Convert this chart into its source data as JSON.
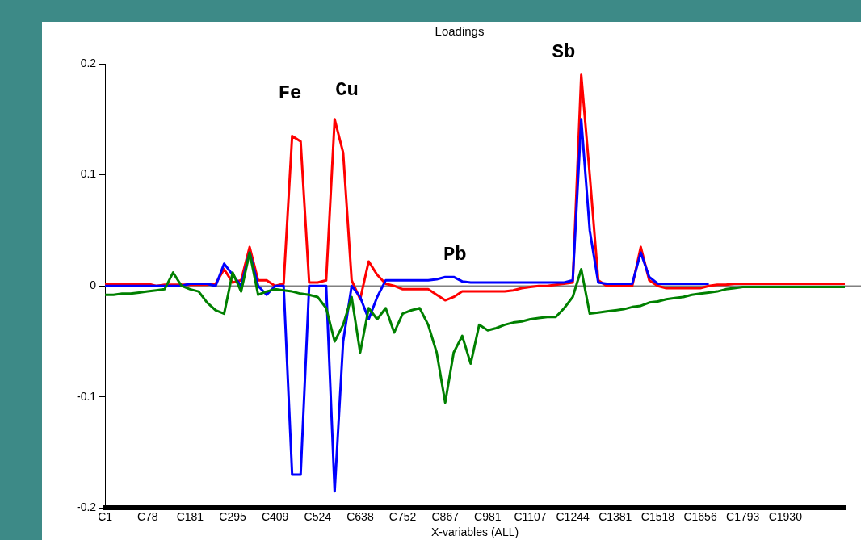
{
  "chart_data": {
    "type": "line",
    "title": "Loadings",
    "xlabel": "X-variables (ALL)",
    "categories": [
      "C1",
      null,
      null,
      null,
      null,
      "C78",
      null,
      null,
      null,
      null,
      "C181",
      null,
      null,
      null,
      null,
      "C295",
      null,
      null,
      null,
      null,
      "C409",
      null,
      null,
      null,
      null,
      "C524",
      null,
      null,
      null,
      null,
      "C638",
      null,
      null,
      null,
      null,
      "C752",
      null,
      null,
      null,
      null,
      "C867",
      null,
      null,
      null,
      null,
      "C981",
      null,
      null,
      null,
      null,
      "C1107",
      null,
      null,
      null,
      null,
      "C1244",
      null,
      null,
      null,
      null,
      "C1381",
      null,
      null,
      null,
      null,
      "C1518",
      null,
      null,
      null,
      null,
      "C1656",
      null,
      null,
      null,
      null,
      "C1793",
      null,
      null,
      null,
      null,
      "C1930",
      null,
      null,
      null,
      null,
      null,
      null,
      null
    ],
    "ylim": [
      -0.2,
      0.2
    ],
    "yticks": [
      -0.2,
      -0.1,
      0,
      0.1,
      0.2
    ],
    "grid": false,
    "legend": false,
    "marker": "none",
    "line_style": "solid",
    "ref_lines": [
      {
        "axis": "y",
        "value": 0,
        "color": "#808080"
      }
    ],
    "annotations": [
      "Fe",
      "Cu",
      "Pb",
      "Sb"
    ],
    "series": [
      {
        "color": "#008000",
        "values": [
          -0.008,
          -0.008,
          -0.007,
          -0.007,
          -0.006,
          -0.005,
          -0.004,
          -0.003,
          0.012,
          0.0,
          -0.003,
          -0.005,
          -0.015,
          -0.022,
          -0.025,
          0.012,
          -0.005,
          0.03,
          -0.008,
          -0.005,
          -0.003,
          -0.004,
          -0.005,
          -0.007,
          -0.008,
          -0.01,
          -0.02,
          -0.05,
          -0.035,
          -0.01,
          -0.06,
          -0.02,
          -0.03,
          -0.02,
          -0.042,
          -0.025,
          -0.022,
          -0.02,
          -0.035,
          -0.06,
          -0.105,
          -0.06,
          -0.045,
          -0.07,
          -0.035,
          -0.04,
          -0.038,
          -0.035,
          -0.033,
          -0.032,
          -0.03,
          -0.029,
          -0.028,
          -0.028,
          -0.02,
          -0.01,
          0.015,
          -0.025,
          -0.024,
          -0.023,
          -0.022,
          -0.021,
          -0.019,
          -0.018,
          -0.015,
          -0.014,
          -0.012,
          -0.011,
          -0.01,
          -0.008,
          -0.007,
          -0.006,
          -0.005,
          -0.003,
          -0.002,
          -0.001,
          -0.001,
          -0.001,
          -0.001,
          -0.001,
          -0.001,
          -0.001,
          -0.001,
          -0.001,
          -0.001,
          -0.001,
          -0.001,
          -0.001
        ]
      },
      {
        "color": "#0000ff",
        "values": [
          0.0,
          0.0,
          0.0,
          0.0,
          0.0,
          0.0,
          0.0,
          0.0,
          0.0,
          0.0,
          0.002,
          0.002,
          0.002,
          0.0,
          0.02,
          0.01,
          0.0,
          0.03,
          0.0,
          -0.008,
          0.0,
          0.0,
          -0.17,
          -0.17,
          0.0,
          0.0,
          0.0,
          -0.185,
          -0.05,
          0.0,
          -0.01,
          -0.03,
          -0.01,
          0.005,
          0.005,
          0.005,
          0.005,
          0.005,
          0.005,
          0.006,
          0.008,
          0.008,
          0.004,
          0.003,
          0.003,
          0.003,
          0.003,
          0.003,
          0.003,
          0.003,
          0.003,
          0.003,
          0.003,
          0.003,
          0.003,
          0.005,
          0.15,
          0.05,
          0.003,
          0.002,
          0.002,
          0.002,
          0.002,
          0.03,
          0.008,
          0.002,
          0.002,
          0.002,
          0.002,
          0.002,
          0.002,
          0.002,
          null,
          null,
          null,
          null,
          null,
          null,
          null,
          null,
          null,
          null,
          null,
          null,
          null,
          null,
          null,
          null
        ]
      },
      {
        "color": "#ff0000",
        "values": [
          0.002,
          0.002,
          0.002,
          0.002,
          0.002,
          0.002,
          0.0,
          0.001,
          0.001,
          0.001,
          0.001,
          0.001,
          0.001,
          0.002,
          0.015,
          0.003,
          0.005,
          0.035,
          0.005,
          0.005,
          0.0,
          0.002,
          0.135,
          0.13,
          0.003,
          0.003,
          0.005,
          0.15,
          0.12,
          0.005,
          -0.012,
          0.022,
          0.01,
          0.002,
          0.0,
          -0.003,
          -0.003,
          -0.003,
          -0.003,
          -0.008,
          -0.013,
          -0.01,
          -0.005,
          -0.005,
          -0.005,
          -0.005,
          -0.005,
          -0.005,
          -0.004,
          -0.002,
          -0.001,
          0.0,
          0.0,
          0.001,
          0.002,
          0.003,
          0.19,
          0.1,
          0.005,
          0.0,
          0.0,
          0.0,
          0.0,
          0.035,
          0.005,
          0.0,
          -0.002,
          -0.002,
          -0.002,
          -0.002,
          -0.002,
          0.0,
          0.001,
          0.001,
          0.002,
          0.002,
          0.002,
          0.002,
          0.002,
          0.002,
          0.002,
          0.002,
          0.002,
          0.002,
          0.002,
          0.002,
          0.002,
          0.002
        ]
      }
    ]
  }
}
